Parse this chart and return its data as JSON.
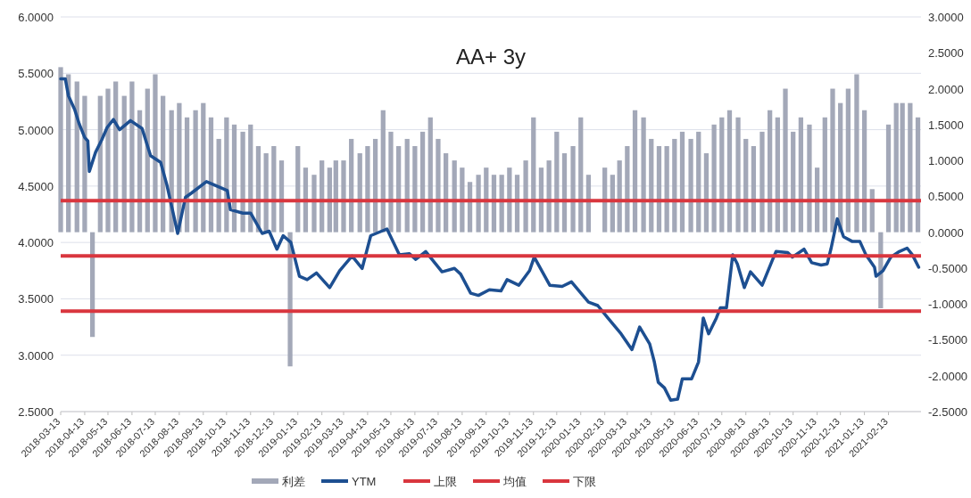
{
  "chart_data": {
    "type": "line",
    "title": "AA+ 3y",
    "xlim": [
      "2018-03-13",
      "2021-03-27"
    ],
    "xticks": [
      "2018-03-13",
      "2018-04-13",
      "2018-05-13",
      "2018-06-13",
      "2018-07-13",
      "2018-08-13",
      "2018-09-13",
      "2018-10-13",
      "2018-11-13",
      "2018-12-13",
      "2019-01-13",
      "2019-02-13",
      "2019-03-13",
      "2019-04-13",
      "2019-05-13",
      "2019-06-13",
      "2019-07-13",
      "2019-08-13",
      "2019-09-13",
      "2019-10-13",
      "2019-11-13",
      "2019-12-13",
      "2020-01-13",
      "2020-02-13",
      "2020-03-13",
      "2020-04-13",
      "2020-05-13",
      "2020-06-13",
      "2020-07-13",
      "2020-08-13",
      "2020-09-13",
      "2020-10-13",
      "2020-11-13",
      "2020-12-13",
      "2021-01-13",
      "2021-02-13"
    ],
    "ylim": [
      2.5,
      6
    ],
    "yticks": [
      {
        "value": 2.5,
        "label": "2.5000"
      },
      {
        "value": 3,
        "label": "3.0000"
      },
      {
        "value": 3.5,
        "label": "3.5000"
      },
      {
        "value": 4,
        "label": "4.0000"
      },
      {
        "value": 4.5,
        "label": "4.5000"
      },
      {
        "value": 5,
        "label": "5.0000"
      },
      {
        "value": 5.5,
        "label": "5.5000"
      },
      {
        "value": 6,
        "label": "6.0000"
      }
    ],
    "y2lim": [
      -2.5,
      3
    ],
    "y2ticks": [
      {
        "value": -2.5,
        "label": "-2.5000"
      },
      {
        "value": -2,
        "label": "-2.0000"
      },
      {
        "value": -1.5,
        "label": "-1.5000"
      },
      {
        "value": -1,
        "label": "-1.0000"
      },
      {
        "value": -0.5,
        "label": "-0.5000"
      },
      {
        "value": 0,
        "label": "0.0000"
      },
      {
        "value": 0.5,
        "label": "0.5000"
      },
      {
        "value": 1,
        "label": "1.0000"
      },
      {
        "value": 1.5,
        "label": "1.5000"
      },
      {
        "value": 2,
        "label": "2.0000"
      },
      {
        "value": 2.5,
        "label": "2.5000"
      },
      {
        "value": 3,
        "label": "3.0000"
      }
    ],
    "grid": "y",
    "legend": "bottom",
    "series": [
      {
        "name": "利差",
        "type": "bar",
        "axis": "y2",
        "color": "#a3a8b8",
        "x": [
          "2018-03-13",
          "2018-03-23",
          "2018-04-03",
          "2018-04-13",
          "2018-04-23",
          "2018-05-03",
          "2018-05-13",
          "2018-05-23",
          "2018-06-03",
          "2018-06-13",
          "2018-06-23",
          "2018-07-03",
          "2018-07-13",
          "2018-07-23",
          "2018-08-03",
          "2018-08-13",
          "2018-08-23",
          "2018-09-03",
          "2018-09-13",
          "2018-09-23",
          "2018-10-03",
          "2018-10-13",
          "2018-10-23",
          "2018-11-03",
          "2018-11-13",
          "2018-11-23",
          "2018-12-03",
          "2018-12-13",
          "2018-12-23",
          "2019-01-03",
          "2019-01-13",
          "2019-01-23",
          "2019-02-03",
          "2019-02-13",
          "2019-02-23",
          "2019-03-03",
          "2019-03-13",
          "2019-03-23",
          "2019-04-03",
          "2019-04-13",
          "2019-04-23",
          "2019-05-03",
          "2019-05-13",
          "2019-05-23",
          "2019-06-03",
          "2019-06-13",
          "2019-06-23",
          "2019-07-03",
          "2019-07-13",
          "2019-07-23",
          "2019-08-03",
          "2019-08-13",
          "2019-08-23",
          "2019-09-03",
          "2019-09-13",
          "2019-09-23",
          "2019-10-03",
          "2019-10-13",
          "2019-10-23",
          "2019-11-03",
          "2019-11-13",
          "2019-11-23",
          "2019-12-03",
          "2019-12-13",
          "2019-12-23",
          "2020-01-03",
          "2020-01-13",
          "2020-01-23",
          "2020-02-03",
          "2020-02-13",
          "2020-02-23",
          "2020-03-03",
          "2020-03-13",
          "2020-03-23",
          "2020-04-03",
          "2020-04-13",
          "2020-04-23",
          "2020-05-03",
          "2020-05-13",
          "2020-05-23",
          "2020-06-03",
          "2020-06-13",
          "2020-06-23",
          "2020-07-03",
          "2020-07-13",
          "2020-07-23",
          "2020-08-03",
          "2020-08-13",
          "2020-08-23",
          "2020-09-03",
          "2020-09-13",
          "2020-09-23",
          "2020-10-03",
          "2020-10-13",
          "2020-10-23",
          "2020-11-03",
          "2020-11-13",
          "2020-11-23",
          "2020-12-03",
          "2020-12-13",
          "2020-12-23",
          "2021-01-03",
          "2021-01-13",
          "2021-01-23",
          "2021-02-03",
          "2021-02-13",
          "2021-02-23",
          "2021-03-03",
          "2021-03-13",
          "2021-03-23"
        ],
        "values": [
          2.3,
          2.2,
          2.1,
          1.9,
          -1.46,
          1.9,
          2.0,
          2.1,
          1.9,
          2.1,
          1.7,
          2.0,
          2.2,
          1.9,
          1.7,
          1.8,
          1.6,
          1.7,
          1.8,
          1.6,
          1.3,
          1.6,
          1.5,
          1.4,
          1.5,
          1.2,
          1.1,
          1.2,
          1.0,
          -1.87,
          1.2,
          0.9,
          0.8,
          1.0,
          0.9,
          1.0,
          1.0,
          1.3,
          1.1,
          1.2,
          1.3,
          1.7,
          1.4,
          1.2,
          1.3,
          1.2,
          1.4,
          1.6,
          1.3,
          1.1,
          1.0,
          0.9,
          0.7,
          0.8,
          0.9,
          0.8,
          0.8,
          0.9,
          0.8,
          1.0,
          1.6,
          0.9,
          1.0,
          1.4,
          1.1,
          1.2,
          1.6,
          0.8,
          null,
          0.9,
          0.8,
          1.0,
          1.2,
          1.7,
          1.6,
          1.3,
          1.2,
          1.2,
          1.3,
          1.4,
          1.3,
          1.4,
          1.1,
          1.5,
          1.6,
          1.7,
          1.6,
          1.3,
          1.2,
          1.4,
          1.7,
          1.6,
          2.0,
          1.4,
          1.6,
          1.5,
          0.9,
          1.6,
          2.0,
          1.8,
          2.0,
          2.2,
          1.7,
          0.6,
          -1.06,
          1.5,
          1.8,
          1.8,
          1.8,
          1.6
        ]
      },
      {
        "name": "YTM",
        "color": "#1d4f91",
        "x": [
          "2018-03-13",
          "2018-03-19",
          "2018-03-23",
          "2018-03-31",
          "2018-04-06",
          "2018-04-13",
          "2018-04-17",
          "2018-04-19",
          "2018-04-27",
          "2018-05-05",
          "2018-05-12",
          "2018-05-20",
          "2018-05-28",
          "2018-06-11",
          "2018-06-26",
          "2018-07-07",
          "2018-07-20",
          "2018-07-28",
          "2018-08-11",
          "2018-08-21",
          "2018-08-29",
          "2018-09-17",
          "2018-10-14",
          "2018-10-18",
          "2018-11-03",
          "2018-11-13",
          "2018-11-28",
          "2018-12-07",
          "2018-12-17",
          "2018-12-25",
          "2019-01-04",
          "2019-01-15",
          "2019-01-25",
          "2019-02-06",
          "2019-02-23",
          "2019-03-08",
          "2019-03-24",
          "2019-04-06",
          "2019-04-17",
          "2019-05-08",
          "2019-05-24",
          "2019-06-06",
          "2019-06-14",
          "2019-06-27",
          "2019-07-18",
          "2019-08-03",
          "2019-08-11",
          "2019-08-24",
          "2019-09-03",
          "2019-09-17",
          "2019-10-02",
          "2019-10-10",
          "2019-10-25",
          "2019-11-08",
          "2019-11-14",
          "2019-12-04",
          "2019-12-20",
          "2020-01-01",
          "2020-01-23",
          "2020-02-04",
          "2020-02-17",
          "2020-03-05",
          "2020-03-19",
          "2020-03-29",
          "2020-04-11",
          "2020-04-17",
          "2020-04-22",
          "2020-04-30",
          "2020-05-08",
          "2020-05-17",
          "2020-05-23",
          "2020-06-04",
          "2020-06-13",
          "2020-06-19",
          "2020-06-26",
          "2020-07-06",
          "2020-07-11",
          "2020-07-19",
          "2020-07-27",
          "2020-08-02",
          "2020-08-11",
          "2020-08-19",
          "2020-09-03",
          "2020-09-16",
          "2020-09-21",
          "2020-10-06",
          "2020-10-12",
          "2020-10-27",
          "2020-11-06",
          "2020-11-18",
          "2020-11-26",
          "2020-12-01",
          "2020-12-09",
          "2020-12-17",
          "2020-12-28",
          "2021-01-07",
          "2021-01-15",
          "2021-01-26",
          "2021-01-28",
          "2021-02-06",
          "2021-02-16",
          "2021-02-27",
          "2021-03-09",
          "2021-03-16",
          "2021-03-24"
        ],
        "values": [
          5.45,
          5.45,
          5.3,
          5.18,
          5.05,
          4.93,
          4.9,
          4.63,
          4.8,
          4.91,
          5.02,
          5.09,
          5.0,
          5.08,
          5.01,
          4.77,
          4.71,
          4.51,
          4.08,
          4.4,
          4.44,
          4.54,
          4.46,
          4.29,
          4.26,
          4.26,
          4.08,
          4.1,
          3.94,
          4.06,
          4.0,
          3.7,
          3.67,
          3.73,
          3.6,
          3.75,
          3.88,
          3.77,
          4.06,
          4.12,
          3.89,
          3.9,
          3.85,
          3.92,
          3.74,
          3.77,
          3.72,
          3.55,
          3.53,
          3.58,
          3.57,
          3.67,
          3.62,
          3.75,
          3.87,
          3.62,
          3.61,
          3.65,
          3.47,
          3.44,
          3.33,
          3.19,
          3.05,
          3.25,
          3.1,
          2.94,
          2.76,
          2.71,
          2.6,
          2.61,
          2.79,
          2.79,
          2.94,
          3.33,
          3.19,
          3.33,
          3.42,
          3.42,
          3.89,
          3.81,
          3.6,
          3.74,
          3.62,
          3.84,
          3.92,
          3.91,
          3.87,
          3.94,
          3.82,
          3.8,
          3.81,
          3.95,
          4.21,
          4.05,
          4.01,
          4.01,
          3.89,
          3.78,
          3.7,
          3.75,
          3.87,
          3.92,
          3.95,
          3.89,
          3.78
        ]
      }
    ],
    "ref_lines": [
      {
        "axis": "y",
        "value": 4.37,
        "label": "上限",
        "color": "#d9363e"
      },
      {
        "axis": "y",
        "value": 3.88,
        "label": "均值",
        "color": "#d9363e"
      },
      {
        "axis": "y",
        "value": 3.39,
        "label": "下限",
        "color": "#d9363e"
      }
    ]
  }
}
